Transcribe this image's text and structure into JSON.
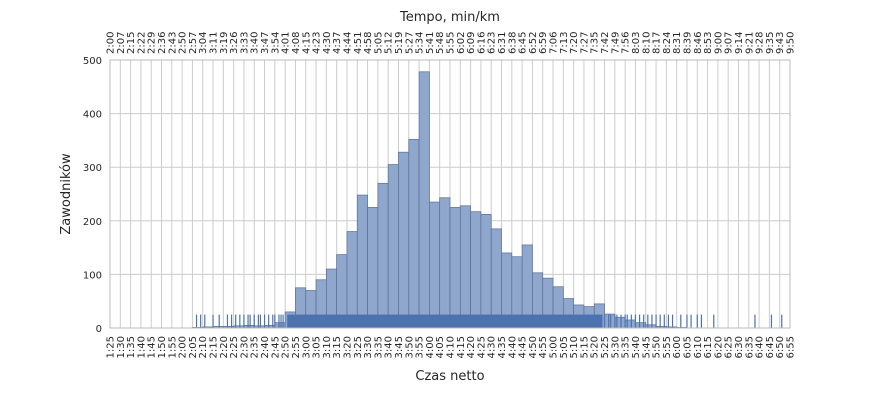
{
  "chart_data": {
    "type": "bar",
    "title": "",
    "xlabel": "Czas netto",
    "ylabel": "Zawodników",
    "x2label": "Tempo, min/km",
    "ylim": [
      0,
      500
    ],
    "yticks": [
      0,
      100,
      200,
      300,
      400,
      500
    ],
    "grid": true,
    "legend": "none",
    "colors": {
      "bar_fill": "#8fa6cd",
      "bar_stroke": "#5a6f95",
      "rug": "#4c72b0",
      "grid": "#cccccc",
      "frame": "#bbbbbb"
    },
    "bottom_tick_labels": [
      "1:25",
      "1:30",
      "1:35",
      "1:40",
      "1:45",
      "1:50",
      "1:55",
      "2:00",
      "2:05",
      "2:10",
      "2:15",
      "2:20",
      "2:25",
      "2:30",
      "2:35",
      "2:40",
      "2:45",
      "2:50",
      "2:55",
      "3:00",
      "3:05",
      "3:10",
      "3:15",
      "3:20",
      "3:25",
      "3:30",
      "3:35",
      "3:40",
      "3:45",
      "3:50",
      "3:55",
      "4:00",
      "4:05",
      "4:10",
      "4:15",
      "4:20",
      "4:25",
      "4:30",
      "4:35",
      "4:40",
      "4:45",
      "4:50",
      "4:55",
      "5:00",
      "5:05",
      "5:10",
      "5:15",
      "5:20",
      "5:25",
      "5:30",
      "5:35",
      "5:40",
      "5:45",
      "5:50",
      "5:55",
      "6:00",
      "6:05",
      "6:10",
      "6:15",
      "6:20",
      "6:25",
      "6:30",
      "6:35",
      "6:40",
      "6:45",
      "6:50",
      "6:55"
    ],
    "top_tick_labels": [
      "2:00",
      "2:07",
      "2:15",
      "2:22",
      "2:29",
      "2:36",
      "2:43",
      "2:50",
      "2:57",
      "3:04",
      "3:11",
      "3:19",
      "3:26",
      "3:33",
      "3:40",
      "3:47",
      "3:54",
      "4:01",
      "4:08",
      "4:15",
      "4:23",
      "4:30",
      "4:37",
      "4:44",
      "4:51",
      "4:58",
      "5:05",
      "5:12",
      "5:19",
      "5:27",
      "5:34",
      "5:41",
      "5:48",
      "5:55",
      "6:02",
      "6:09",
      "6:16",
      "6:23",
      "6:31",
      "6:38",
      "6:45",
      "6:52",
      "6:59",
      "7:06",
      "7:13",
      "7:20",
      "7:27",
      "7:35",
      "7:42",
      "7:49",
      "7:56",
      "8:03",
      "8:10",
      "8:17",
      "8:24",
      "8:31",
      "8:39",
      "8:46",
      "8:53",
      "9:00",
      "9:07",
      "9:14",
      "9:21",
      "9:28",
      "9:35",
      "9:43",
      "9:50"
    ],
    "bins_start": "2:05",
    "bin_width_min": 5,
    "values": [
      1,
      2,
      3,
      3,
      4,
      5,
      4,
      5,
      10,
      30,
      75,
      70,
      90,
      110,
      137,
      180,
      248,
      225,
      270,
      305,
      328,
      352,
      478,
      235,
      243,
      225,
      228,
      217,
      212,
      185,
      140,
      133,
      155,
      103,
      93,
      77,
      55,
      43,
      40,
      45,
      26,
      20,
      15,
      10,
      6,
      3,
      2,
      1
    ],
    "rug_dense_start": "2:51",
    "rug_dense_end": "5:24",
    "rug_sparse": [
      "2:07",
      "2:09",
      "2:11",
      "2:15",
      "2:18",
      "2:22",
      "2:24",
      "2:26",
      "2:28",
      "2:30",
      "2:32",
      "2:33",
      "2:35",
      "2:37",
      "2:38",
      "2:40",
      "2:42",
      "2:44",
      "2:45",
      "2:47",
      "2:48",
      "2:49",
      "5:25",
      "5:27",
      "5:28",
      "5:30",
      "5:31",
      "5:33",
      "5:35",
      "5:36",
      "5:38",
      "5:40",
      "5:42",
      "5:44",
      "5:46",
      "5:48",
      "5:50",
      "5:52",
      "5:54",
      "5:56",
      "5:58",
      "6:02",
      "6:05",
      "6:07",
      "6:10",
      "6:12",
      "6:18",
      "6:38",
      "6:46",
      "6:51"
    ]
  }
}
